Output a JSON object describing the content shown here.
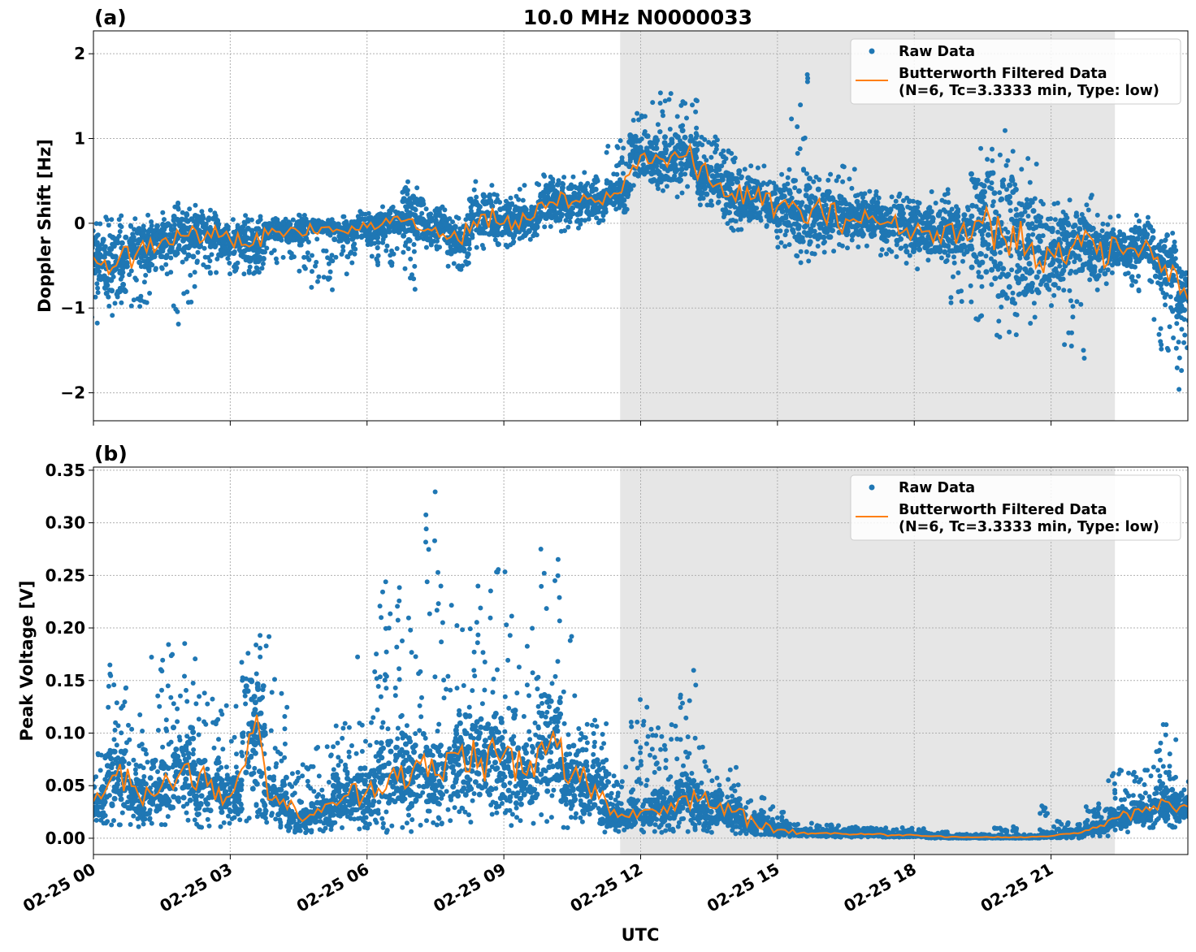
{
  "title": "10.0 MHz N0000033",
  "xlabel": "UTC",
  "x_tick_labels": [
    "02-25 00",
    "02-25 03",
    "02-25 06",
    "02-25 09",
    "02-25 12",
    "02-25 15",
    "02-25 18",
    "02-25 21"
  ],
  "x_tick_hours": [
    0,
    3,
    6,
    9,
    12,
    15,
    18,
    21
  ],
  "xlim_hours": [
    0,
    24
  ],
  "shaded_region_hours": [
    11.55,
    22.4
  ],
  "shade_color": "#e6e6e6",
  "raw_color": "#1f77b4",
  "filtered_color": "#ff7f0e",
  "legend": {
    "raw": "Raw Data",
    "filtered_line1": "Butterworth Filtered Data",
    "filtered_line2": "(N=6, Tc=3.3333 min, Type: low)",
    "placement": "top-right"
  },
  "chart_data": [
    {
      "type": "scatter+line",
      "panel_label": "(a)",
      "ylabel": "Doppler Shift [Hz]",
      "ylim": [
        -2.33,
        2.27
      ],
      "y_ticks": [
        2,
        1,
        0,
        -1,
        -2
      ],
      "y_tick_labels": [
        "2",
        "1",
        "0",
        "−1",
        "−2"
      ],
      "grid": true,
      "x_hours": [
        0,
        0.5,
        1,
        1.5,
        2,
        2.5,
        3,
        3.5,
        4,
        4.5,
        5,
        5.5,
        6,
        6.5,
        7,
        7.5,
        8,
        8.5,
        9,
        9.5,
        10,
        10.5,
        11,
        11.5,
        12,
        12.5,
        13,
        13.5,
        14,
        14.5,
        15,
        15.5,
        16,
        16.5,
        17,
        17.5,
        18,
        18.5,
        19,
        19.5,
        20,
        20.5,
        21,
        21.5,
        22,
        22.5,
        23,
        23.5,
        24
      ],
      "filtered": [
        -0.4,
        -0.5,
        -0.3,
        -0.2,
        -0.15,
        -0.1,
        -0.2,
        -0.25,
        -0.1,
        -0.1,
        -0.05,
        -0.1,
        -0.05,
        0,
        0.05,
        -0.05,
        -0.2,
        0.1,
        0,
        0.05,
        0.25,
        0.25,
        0.25,
        0.35,
        0.8,
        0.75,
        0.8,
        0.5,
        0.35,
        0.3,
        0.2,
        0.15,
        0.1,
        0.05,
        0.05,
        0,
        -0.1,
        -0.1,
        -0.1,
        0,
        -0.2,
        -0.3,
        -0.35,
        -0.25,
        -0.35,
        -0.3,
        -0.3,
        -0.5,
        -0.9
      ],
      "raw_min": [
        -1.2,
        -1.1,
        -1.0,
        -0.6,
        -1.2,
        -0.6,
        -0.6,
        -0.6,
        -0.5,
        -0.6,
        -0.8,
        -0.6,
        -0.5,
        -0.5,
        -0.8,
        -0.35,
        -0.6,
        -0.3,
        -0.3,
        -0.2,
        -0.1,
        -0.1,
        0,
        0.1,
        0.4,
        0.3,
        0.3,
        0.2,
        -0.1,
        -0.1,
        -0.3,
        -0.5,
        -0.4,
        -0.3,
        -0.3,
        -0.4,
        -0.6,
        -0.5,
        -1.0,
        -1.2,
        -1.4,
        -1.2,
        -1.0,
        -1.6,
        -0.9,
        -0.6,
        -0.8,
        -1.5,
        -2.1
      ],
      "raw_max": [
        0,
        0.1,
        0.1,
        0.15,
        0.3,
        0.2,
        0.1,
        0.1,
        0.1,
        0.1,
        0.05,
        0.1,
        0.15,
        0.2,
        0.5,
        0.2,
        0.1,
        0.5,
        0.4,
        0.5,
        0.6,
        0.55,
        0.6,
        1.0,
        1.3,
        1.6,
        1.5,
        1.1,
        0.9,
        0.7,
        0.6,
        2.05,
        0.6,
        0.9,
        0.4,
        0.35,
        0.3,
        0.4,
        0.3,
        1.0,
        1.1,
        0.9,
        0.3,
        0.4,
        0.4,
        0.1,
        0.1,
        -0.1,
        -0.3
      ]
    },
    {
      "type": "scatter+line",
      "panel_label": "(b)",
      "ylabel": "Peak Voltage [V]",
      "ylim": [
        -0.0155,
        0.353
      ],
      "y_ticks": [
        0,
        0.05,
        0.1,
        0.15,
        0.2,
        0.25,
        0.3,
        0.35
      ],
      "y_tick_labels": [
        "0.00",
        "0.05",
        "0.10",
        "0.15",
        "0.20",
        "0.25",
        "0.30",
        "0.35"
      ],
      "grid": true,
      "x_hours": [
        0,
        0.5,
        1,
        1.5,
        2,
        2.5,
        3,
        3.5,
        4,
        4.5,
        5,
        5.5,
        6,
        6.5,
        7,
        7.5,
        8,
        8.5,
        9,
        9.5,
        10,
        10.5,
        11,
        11.5,
        12,
        12.5,
        13,
        13.5,
        14,
        14.5,
        15,
        15.5,
        16,
        16.5,
        17,
        17.5,
        18,
        18.5,
        19,
        19.5,
        20,
        20.5,
        21,
        21.5,
        22,
        22.5,
        23,
        23.5,
        24
      ],
      "filtered": [
        0.035,
        0.06,
        0.04,
        0.05,
        0.07,
        0.05,
        0.04,
        0.1,
        0.04,
        0.02,
        0.025,
        0.04,
        0.045,
        0.06,
        0.065,
        0.06,
        0.08,
        0.075,
        0.08,
        0.06,
        0.09,
        0.06,
        0.05,
        0.02,
        0.025,
        0.03,
        0.04,
        0.03,
        0.025,
        0.015,
        0.008,
        0.005,
        0.005,
        0.004,
        0.004,
        0.003,
        0.003,
        0.002,
        0.001,
        0.001,
        0.001,
        0.001,
        0.002,
        0.005,
        0.01,
        0.02,
        0.025,
        0.035,
        0.03
      ],
      "raw_min": [
        0.01,
        0.01,
        0.01,
        0.01,
        0.01,
        0.01,
        0.01,
        0.01,
        0.01,
        0.005,
        0.005,
        0.005,
        0.005,
        0.005,
        0.005,
        0.01,
        0.01,
        0.01,
        0.01,
        0.01,
        0.01,
        0.01,
        0.005,
        0.005,
        0.005,
        0.005,
        0.005,
        0.003,
        0.003,
        0.002,
        0.001,
        0.001,
        0.001,
        0.001,
        0.001,
        0.001,
        0.001,
        0,
        0,
        0,
        0,
        0,
        0,
        0,
        0.002,
        0.005,
        0.01,
        0.01,
        0.01
      ],
      "raw_max": [
        0.1,
        0.18,
        0.12,
        0.19,
        0.2,
        0.14,
        0.13,
        0.225,
        0.2,
        0.07,
        0.09,
        0.11,
        0.18,
        0.245,
        0.21,
        0.335,
        0.255,
        0.24,
        0.265,
        0.2,
        0.285,
        0.2,
        0.12,
        0.07,
        0.14,
        0.11,
        0.165,
        0.09,
        0.07,
        0.04,
        0.03,
        0.015,
        0.013,
        0.012,
        0.01,
        0.01,
        0.01,
        0.006,
        0.004,
        0.004,
        0.015,
        0.004,
        0.033,
        0.015,
        0.035,
        0.07,
        0.07,
        0.12,
        0.06
      ]
    }
  ]
}
